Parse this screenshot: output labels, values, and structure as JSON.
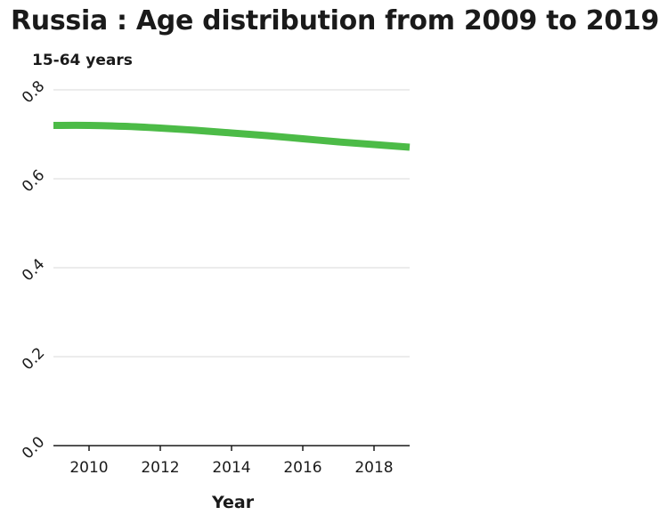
{
  "chart_data": {
    "type": "line",
    "title": "Russia : Age distribution from 2009 to 2019",
    "ylabel": "15-64 years",
    "xlabel": "Year",
    "x": [
      2009,
      2010,
      2011,
      2012,
      2013,
      2014,
      2015,
      2016,
      2017,
      2018,
      2019
    ],
    "series": [
      {
        "values": [
          0.72,
          0.72,
          0.718,
          0.714,
          0.709,
          0.703,
          0.697,
          0.69,
          0.683,
          0.677,
          0.671
        ]
      }
    ],
    "xlim": [
      2009,
      2019
    ],
    "ylim": [
      0,
      0.8
    ],
    "x_ticks": [
      "2010",
      "2012",
      "2014",
      "2016",
      "2018"
    ],
    "y_ticks": [
      "0.0",
      "0.2",
      "0.4",
      "0.6",
      "0.8"
    ],
    "grid": "horizontal",
    "line_color": "#4cbb47"
  }
}
